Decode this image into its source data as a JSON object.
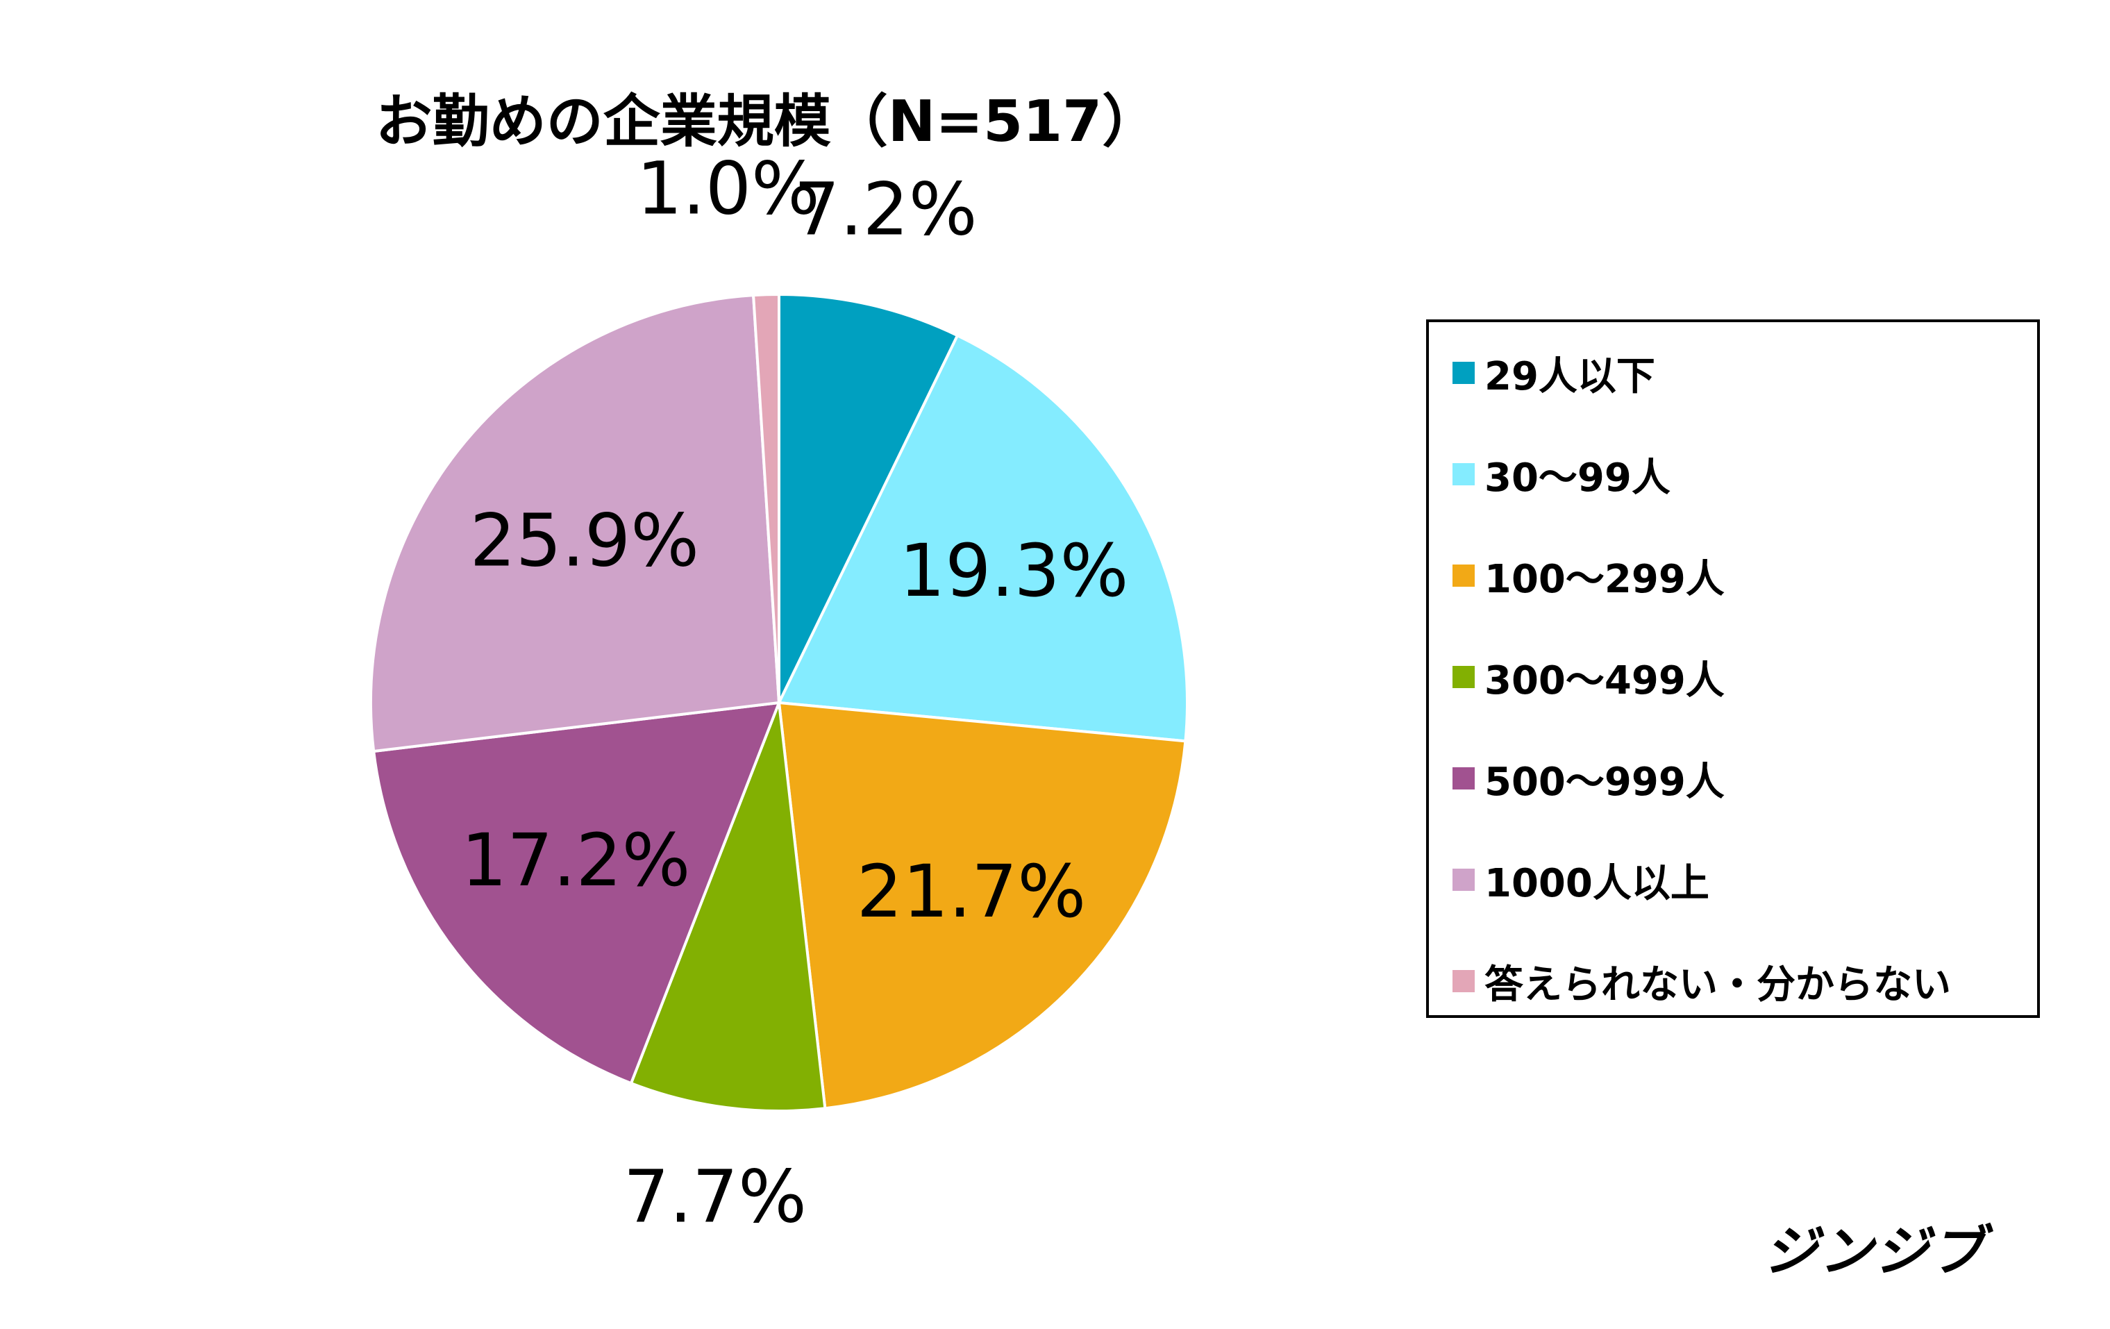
{
  "title": "お勤めの企業規模（N=517）",
  "brand": "ジンジブ",
  "chart_data": {
    "type": "pie",
    "title": "お勤めの企業規模（N=517）",
    "legend_position": "right",
    "slices": [
      {
        "label": "29人以下",
        "value": 7.2,
        "display": "7.2%",
        "color": "#00A0C0"
      },
      {
        "label": "30～99人",
        "value": 19.3,
        "display": "19.3%",
        "color": "#84ECFF"
      },
      {
        "label": "100～299人",
        "value": 21.7,
        "display": "21.7%",
        "color": "#F2A916"
      },
      {
        "label": "300～499人",
        "value": 7.7,
        "display": "7.7%",
        "color": "#82B002"
      },
      {
        "label": "500～999人",
        "value": 17.2,
        "display": "17.2%",
        "color": "#A15290"
      },
      {
        "label": "1000人以上",
        "value": 25.9,
        "display": "25.9%",
        "color": "#CFA3C9"
      },
      {
        "label": "答えられない・分からない",
        "value": 1.0,
        "display": "1.0%",
        "color": "#E3A6B7"
      }
    ]
  }
}
